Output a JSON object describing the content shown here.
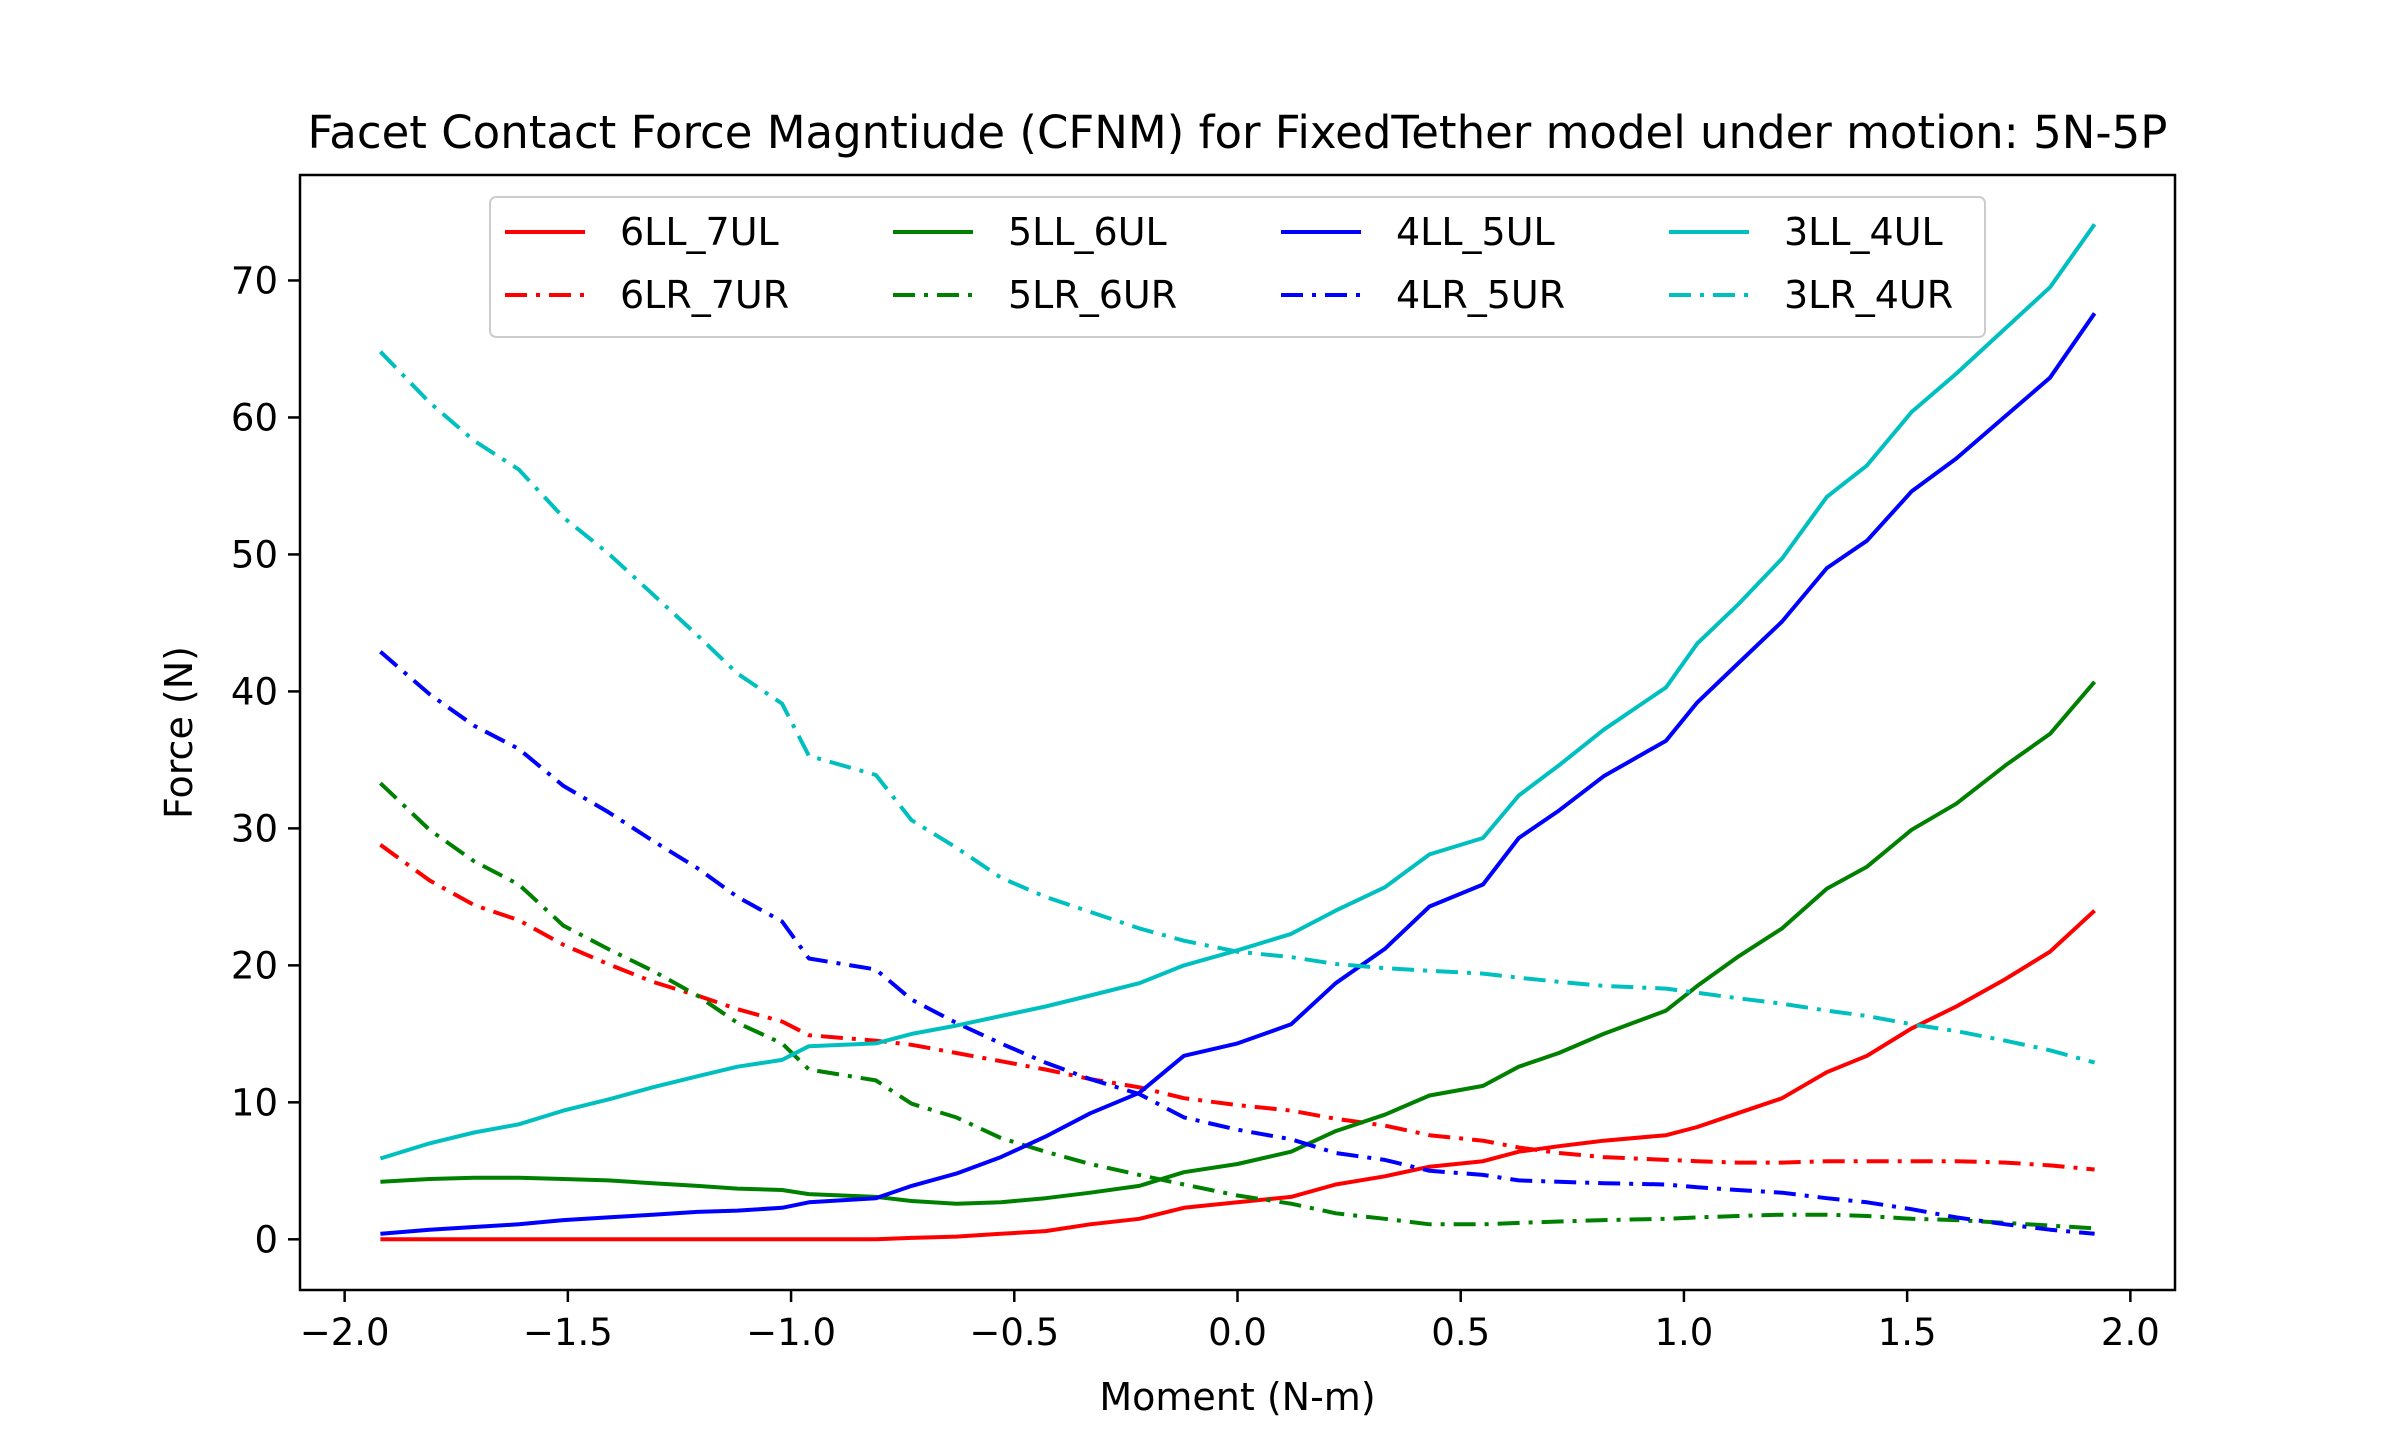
{
  "chart_data": {
    "type": "line",
    "title": "Facet Contact Force Magntiude (CFNM) for FixedTether model under motion: 5N-5P",
    "xlabel": "Moment (N-m)",
    "ylabel": "Force (N)",
    "xlim": [
      -2.1,
      2.1
    ],
    "ylim": [
      -3.7,
      77.7
    ],
    "xticks": [
      -2.0,
      -1.5,
      -1.0,
      -0.5,
      0.0,
      0.5,
      1.0,
      1.5,
      2.0
    ],
    "xtick_labels": [
      "−2.0",
      "−1.5",
      "−1.0",
      "−0.5",
      "0.0",
      "0.5",
      "1.0",
      "1.5",
      "2.0"
    ],
    "yticks": [
      0,
      10,
      20,
      30,
      40,
      50,
      60,
      70
    ],
    "ytick_labels": [
      "0",
      "10",
      "20",
      "30",
      "40",
      "50",
      "60",
      "70"
    ],
    "grid": false,
    "legend": {
      "placement": "top-center",
      "columns": 4
    },
    "x": [
      -1.92,
      -1.81,
      -1.71,
      -1.61,
      -1.51,
      -1.41,
      -1.31,
      -1.21,
      -1.12,
      -1.02,
      -0.96,
      -0.81,
      -0.73,
      -0.63,
      -0.53,
      -0.43,
      -0.33,
      -0.22,
      -0.12,
      0.0,
      0.12,
      0.22,
      0.33,
      0.43,
      0.55,
      0.63,
      0.72,
      0.82,
      0.96,
      1.03,
      1.12,
      1.22,
      1.32,
      1.41,
      1.51,
      1.61,
      1.72,
      1.82,
      1.92
    ],
    "series": [
      {
        "name": "6LL_7UL",
        "color": "#ff0000",
        "dash": "solid",
        "values": [
          0,
          0,
          0,
          0,
          0,
          0,
          0,
          0,
          0,
          0,
          0,
          0,
          0.1,
          0.2,
          0.4,
          0.6,
          1.1,
          1.5,
          2.3,
          2.7,
          3.1,
          4.0,
          4.6,
          5.3,
          5.7,
          6.4,
          6.8,
          7.2,
          7.6,
          8.2,
          9.2,
          10.3,
          12.2,
          13.4,
          15.4,
          17.0,
          19.0,
          21.0,
          24.0
        ]
      },
      {
        "name": "6LR_7UR",
        "color": "#ff0000",
        "dash": "dashdot",
        "values": [
          28.8,
          26.2,
          24.4,
          23.3,
          21.5,
          20.1,
          18.8,
          17.8,
          16.8,
          15.9,
          14.9,
          14.5,
          14.2,
          13.6,
          13.0,
          12.4,
          11.7,
          11.1,
          10.3,
          9.8,
          9.4,
          8.8,
          8.3,
          7.6,
          7.2,
          6.7,
          6.3,
          6.0,
          5.8,
          5.7,
          5.6,
          5.6,
          5.7,
          5.7,
          5.7,
          5.7,
          5.6,
          5.4,
          5.1
        ]
      },
      {
        "name": "5LL_6UL",
        "color": "#008000",
        "dash": "solid",
        "values": [
          4.2,
          4.4,
          4.5,
          4.5,
          4.4,
          4.3,
          4.1,
          3.9,
          3.7,
          3.6,
          3.3,
          3.1,
          2.8,
          2.6,
          2.7,
          3.0,
          3.4,
          3.9,
          4.9,
          5.5,
          6.4,
          7.9,
          9.1,
          10.5,
          11.2,
          12.6,
          13.6,
          15.0,
          16.7,
          18.5,
          20.6,
          22.7,
          25.6,
          27.2,
          29.9,
          31.8,
          34.6,
          36.9,
          40.7
        ]
      },
      {
        "name": "5LR_6UR",
        "color": "#008000",
        "dash": "dashdot",
        "values": [
          33.3,
          29.9,
          27.6,
          25.9,
          22.9,
          21.2,
          19.6,
          17.8,
          15.8,
          14.3,
          12.4,
          11.6,
          9.9,
          8.9,
          7.4,
          6.4,
          5.5,
          4.7,
          4.0,
          3.2,
          2.6,
          1.9,
          1.5,
          1.1,
          1.1,
          1.2,
          1.3,
          1.4,
          1.5,
          1.6,
          1.7,
          1.8,
          1.8,
          1.7,
          1.5,
          1.4,
          1.2,
          1.0,
          0.8
        ]
      },
      {
        "name": "4LL_5UL",
        "color": "#0000ff",
        "dash": "solid",
        "values": [
          0.4,
          0.7,
          0.9,
          1.1,
          1.4,
          1.6,
          1.8,
          2.0,
          2.1,
          2.3,
          2.7,
          3.0,
          3.9,
          4.8,
          6.0,
          7.5,
          9.2,
          10.7,
          13.4,
          14.3,
          15.7,
          18.7,
          21.2,
          24.3,
          25.9,
          29.3,
          31.3,
          33.8,
          36.4,
          39.2,
          42.0,
          45.1,
          49.0,
          51.0,
          54.6,
          57.0,
          60.1,
          62.9,
          67.6
        ]
      },
      {
        "name": "4LR_5UR",
        "color": "#0000ff",
        "dash": "dashdot",
        "values": [
          42.9,
          39.8,
          37.5,
          35.8,
          33.1,
          31.2,
          29.1,
          27.1,
          25.0,
          23.2,
          20.5,
          19.7,
          17.5,
          15.8,
          14.3,
          12.9,
          11.7,
          10.6,
          8.9,
          8.0,
          7.3,
          6.3,
          5.8,
          5.0,
          4.7,
          4.3,
          4.2,
          4.1,
          4.0,
          3.8,
          3.6,
          3.4,
          3.0,
          2.7,
          2.2,
          1.6,
          1.1,
          0.7,
          0.4
        ]
      },
      {
        "name": "3LL_4UL",
        "color": "#00bfbf",
        "dash": "solid",
        "values": [
          5.9,
          7.0,
          7.8,
          8.4,
          9.4,
          10.2,
          11.1,
          11.9,
          12.6,
          13.1,
          14.1,
          14.3,
          15.0,
          15.6,
          16.3,
          17.0,
          17.8,
          18.7,
          20.0,
          21.1,
          22.3,
          24.0,
          25.7,
          28.1,
          29.3,
          32.4,
          34.6,
          37.2,
          40.3,
          43.5,
          46.3,
          49.7,
          54.2,
          56.5,
          60.4,
          63.2,
          66.5,
          69.5,
          74.1
        ]
      },
      {
        "name": "3LR_4UR",
        "color": "#00bfbf",
        "dash": "dashdot",
        "values": [
          64.8,
          61.1,
          58.3,
          56.2,
          52.7,
          50.1,
          47.1,
          44.1,
          41.3,
          39.1,
          35.3,
          33.9,
          30.6,
          28.6,
          26.4,
          25.0,
          23.9,
          22.7,
          21.8,
          21.0,
          20.6,
          20.1,
          19.8,
          19.6,
          19.4,
          19.1,
          18.8,
          18.5,
          18.3,
          18.0,
          17.6,
          17.2,
          16.7,
          16.3,
          15.7,
          15.2,
          14.5,
          13.8,
          12.9
        ]
      }
    ]
  }
}
